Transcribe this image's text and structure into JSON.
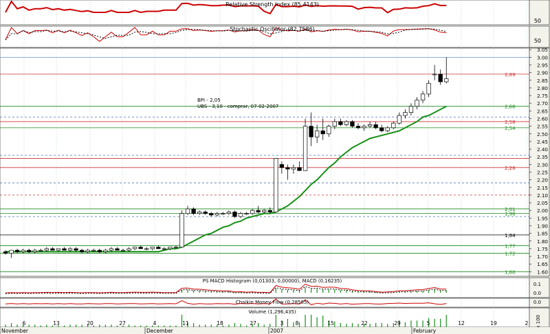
{
  "chart_data": [
    {
      "type": "line",
      "panel": "rsi",
      "title": "Relative Strength Index (85,4143)",
      "yticks": [
        50
      ],
      "ylim": [
        0,
        100
      ],
      "colors": {
        "line": "#cc0000"
      }
    },
    {
      "type": "line",
      "panel": "stochastic",
      "title": "Stochastic Oscillator (82,7586)",
      "yticks": [
        50
      ],
      "ylim": [
        0,
        100
      ],
      "colors": {
        "k": "#cc0000",
        "d": "#000000"
      }
    },
    {
      "type": "candlestick",
      "panel": "price",
      "yticks": [
        "3.05",
        "3.00",
        "2.95",
        "2.90",
        "2.85",
        "2.80",
        "2.75",
        "2.70",
        "2.65",
        "2.60",
        "2.55",
        "2.50",
        "2.45",
        "2.40",
        "2.35",
        "2.30",
        "2.25",
        "2.20",
        "2.15",
        "2.10",
        "2.05",
        "2.00",
        "1.95",
        "1.90",
        "1.85",
        "1.80",
        "1.75",
        "1.70",
        "1.65",
        "1.60"
      ],
      "ylim": [
        1.57,
        3.06
      ],
      "annotations": [
        "BPI - 2,05",
        "UBS - 3,10 - comprar, 07-02-2007"
      ],
      "horizontal_levels": [
        {
          "value": 3.0,
          "label": "",
          "color": "#6f8fcf",
          "dashed": false
        },
        {
          "value": 2.89,
          "label": "2,89",
          "color": "#cc3333",
          "dashed": false
        },
        {
          "value": 2.68,
          "label": "2,68",
          "color": "#1a8a1a",
          "dashed": false
        },
        {
          "value": 2.61,
          "label": "",
          "color": "#4b6fb0",
          "dashed": true
        },
        {
          "value": 2.58,
          "label": "2,58",
          "color": "#cc3333",
          "dashed": false
        },
        {
          "value": 2.54,
          "label": "2,54",
          "color": "#1a8a1a",
          "dashed": false
        },
        {
          "value": 2.36,
          "label": "",
          "color": "#4b6fb0",
          "dashed": true
        },
        {
          "value": 2.34,
          "label": "",
          "color": "#cc3333",
          "dashed": false
        },
        {
          "value": 2.28,
          "label": "2,28",
          "color": "#cc3333",
          "dashed": false
        },
        {
          "value": 2.18,
          "label": "",
          "color": "#4b6fb0",
          "dashed": true
        },
        {
          "value": 2.1,
          "label": "",
          "color": "#cc3333",
          "dashed": true
        },
        {
          "value": 2.01,
          "label": "2,01",
          "color": "#1a8a1a",
          "dashed": false
        },
        {
          "value": 1.98,
          "label": "1,98",
          "color": "#1a8a1a",
          "dashed": false
        },
        {
          "value": 1.96,
          "label": "",
          "color": "#4b6fb0",
          "dashed": true
        },
        {
          "value": 1.84,
          "label": "1,84",
          "color": "#000000",
          "dashed": false
        },
        {
          "value": 1.77,
          "label": "1,77",
          "color": "#1a8a1a",
          "dashed": false
        },
        {
          "value": 1.72,
          "label": "1,72",
          "color": "#1a8a1a",
          "dashed": false
        },
        {
          "value": 1.6,
          "label": "1,60",
          "color": "#1a8a1a",
          "dashed": false
        }
      ],
      "candles": [
        [
          1.73,
          1.74,
          1.71,
          1.72
        ],
        [
          1.72,
          1.74,
          1.69,
          1.74
        ],
        [
          1.74,
          1.75,
          1.72,
          1.73
        ],
        [
          1.73,
          1.75,
          1.72,
          1.74
        ],
        [
          1.74,
          1.75,
          1.72,
          1.73
        ],
        [
          1.73,
          1.75,
          1.72,
          1.74
        ],
        [
          1.74,
          1.75,
          1.73,
          1.74
        ],
        [
          1.74,
          1.76,
          1.73,
          1.75
        ],
        [
          1.75,
          1.76,
          1.74,
          1.74
        ],
        [
          1.74,
          1.75,
          1.73,
          1.75
        ],
        [
          1.75,
          1.76,
          1.74,
          1.74
        ],
        [
          1.74,
          1.76,
          1.73,
          1.75
        ],
        [
          1.75,
          1.76,
          1.73,
          1.74
        ],
        [
          1.74,
          1.75,
          1.72,
          1.73
        ],
        [
          1.73,
          1.75,
          1.72,
          1.74
        ],
        [
          1.74,
          1.75,
          1.73,
          1.74
        ],
        [
          1.74,
          1.75,
          1.72,
          1.73
        ],
        [
          1.73,
          1.75,
          1.72,
          1.74
        ],
        [
          1.74,
          1.76,
          1.73,
          1.75
        ],
        [
          1.75,
          1.76,
          1.74,
          1.74
        ],
        [
          1.74,
          1.75,
          1.73,
          1.74
        ],
        [
          1.74,
          1.76,
          1.73,
          1.75
        ],
        [
          1.75,
          1.76,
          1.74,
          1.76
        ],
        [
          1.76,
          1.77,
          1.75,
          1.75
        ],
        [
          1.75,
          1.76,
          1.74,
          1.75
        ],
        [
          1.75,
          1.76,
          1.74,
          1.76
        ],
        [
          1.76,
          1.77,
          1.75,
          1.75
        ],
        [
          1.75,
          1.76,
          1.74,
          1.75
        ],
        [
          1.75,
          1.76,
          1.74,
          1.76
        ],
        [
          1.76,
          1.77,
          1.75,
          1.76
        ],
        [
          1.76,
          2.0,
          1.76,
          1.98
        ],
        [
          1.98,
          2.03,
          1.97,
          2.01
        ],
        [
          2.01,
          2.02,
          1.97,
          1.98
        ],
        [
          1.98,
          2.0,
          1.97,
          1.99
        ],
        [
          1.99,
          2.0,
          1.97,
          1.98
        ],
        [
          1.98,
          1.99,
          1.96,
          1.97
        ],
        [
          1.97,
          1.99,
          1.96,
          1.98
        ],
        [
          1.98,
          1.99,
          1.97,
          1.98
        ],
        [
          1.98,
          2.0,
          1.97,
          1.99
        ],
        [
          1.99,
          2.0,
          1.95,
          1.96
        ],
        [
          1.96,
          1.99,
          1.95,
          1.98
        ],
        [
          1.98,
          1.99,
          1.97,
          1.98
        ],
        [
          1.98,
          2.01,
          1.97,
          2.0
        ],
        [
          2.0,
          2.03,
          1.98,
          1.99
        ],
        [
          1.99,
          2.01,
          1.98,
          2.0
        ],
        [
          2.0,
          2.02,
          1.98,
          1.99
        ],
        [
          1.99,
          2.34,
          1.99,
          2.34
        ],
        [
          2.3,
          2.32,
          2.24,
          2.28
        ],
        [
          2.28,
          2.3,
          2.2,
          2.27
        ],
        [
          2.27,
          2.3,
          2.24,
          2.28
        ],
        [
          2.28,
          2.32,
          2.26,
          2.26
        ],
        [
          2.26,
          2.6,
          2.26,
          2.55
        ],
        [
          2.55,
          2.64,
          2.42,
          2.48
        ],
        [
          2.48,
          2.56,
          2.44,
          2.52
        ],
        [
          2.52,
          2.6,
          2.46,
          2.5
        ],
        [
          2.5,
          2.56,
          2.48,
          2.55
        ],
        [
          2.55,
          2.6,
          2.53,
          2.58
        ],
        [
          2.58,
          2.6,
          2.55,
          2.56
        ],
        [
          2.56,
          2.59,
          2.55,
          2.58
        ],
        [
          2.58,
          2.59,
          2.54,
          2.55
        ],
        [
          2.55,
          2.57,
          2.53,
          2.54
        ],
        [
          2.54,
          2.56,
          2.52,
          2.55
        ],
        [
          2.55,
          2.58,
          2.54,
          2.56
        ],
        [
          2.56,
          2.58,
          2.53,
          2.54
        ],
        [
          2.54,
          2.56,
          2.51,
          2.52
        ],
        [
          2.52,
          2.55,
          2.51,
          2.54
        ],
        [
          2.54,
          2.58,
          2.53,
          2.57
        ],
        [
          2.57,
          2.64,
          2.56,
          2.62
        ],
        [
          2.62,
          2.66,
          2.6,
          2.64
        ],
        [
          2.64,
          2.7,
          2.62,
          2.68
        ],
        [
          2.68,
          2.74,
          2.66,
          2.72
        ],
        [
          2.72,
          2.78,
          2.7,
          2.76
        ],
        [
          2.76,
          2.85,
          2.74,
          2.83
        ],
        [
          2.89,
          2.95,
          2.85,
          2.89
        ],
        [
          2.89,
          2.92,
          2.82,
          2.84
        ],
        [
          2.84,
          3.0,
          2.83,
          2.86
        ]
      ],
      "sma": [
        1.73,
        1.73,
        1.73,
        1.73,
        1.73,
        1.73,
        1.73,
        1.73,
        1.73,
        1.73,
        1.73,
        1.73,
        1.73,
        1.73,
        1.73,
        1.73,
        1.73,
        1.73,
        1.73,
        1.73,
        1.73,
        1.73,
        1.73,
        1.73,
        1.73,
        1.73,
        1.73,
        1.74,
        1.75,
        1.75,
        1.76,
        1.78,
        1.8,
        1.82,
        1.84,
        1.85,
        1.87,
        1.89,
        1.9,
        1.92,
        1.93,
        1.95,
        1.96,
        1.97,
        1.98,
        1.98,
        1.99,
        2.01,
        2.03,
        2.06,
        2.09,
        2.13,
        2.17,
        2.2,
        2.24,
        2.28,
        2.31,
        2.35,
        2.38,
        2.41,
        2.43,
        2.45,
        2.47,
        2.48,
        2.49,
        2.5,
        2.51,
        2.52,
        2.54,
        2.56,
        2.58,
        2.61,
        2.62,
        2.64,
        2.66,
        2.68
      ],
      "colors": {
        "sma": "#169016",
        "up": "#ffffff",
        "down": "#000000"
      }
    },
    {
      "type": "bar",
      "panel": "macd",
      "title": "PS MACD Histogram (0,01303, 0,00000), MACD (0,16235)",
      "yticks": [
        "0.1",
        "0.0",
        "-0.1"
      ],
      "ylim": [
        -0.15,
        0.15
      ]
    },
    {
      "type": "line",
      "panel": "cmf",
      "title": "Chaikin Money Flow (0,28585)",
      "yticks": [
        "0.0"
      ],
      "colors": {
        "line": "#cc0000"
      }
    },
    {
      "type": "bar",
      "panel": "volume",
      "title": "Volume (1,296,435)",
      "yticks": [
        "0"
      ],
      "ytick_suffix": "x 100",
      "colors": {
        "bar": "#169016"
      }
    }
  ],
  "x_axis": {
    "tick_labels": [
      "6",
      "13",
      "20",
      "27",
      "4",
      "11",
      "18",
      "27",
      "3",
      "8",
      "15",
      "22",
      "29",
      "5",
      "12",
      "19",
      "2"
    ],
    "month_labels": [
      "November",
      "December",
      "2007",
      "February"
    ]
  }
}
